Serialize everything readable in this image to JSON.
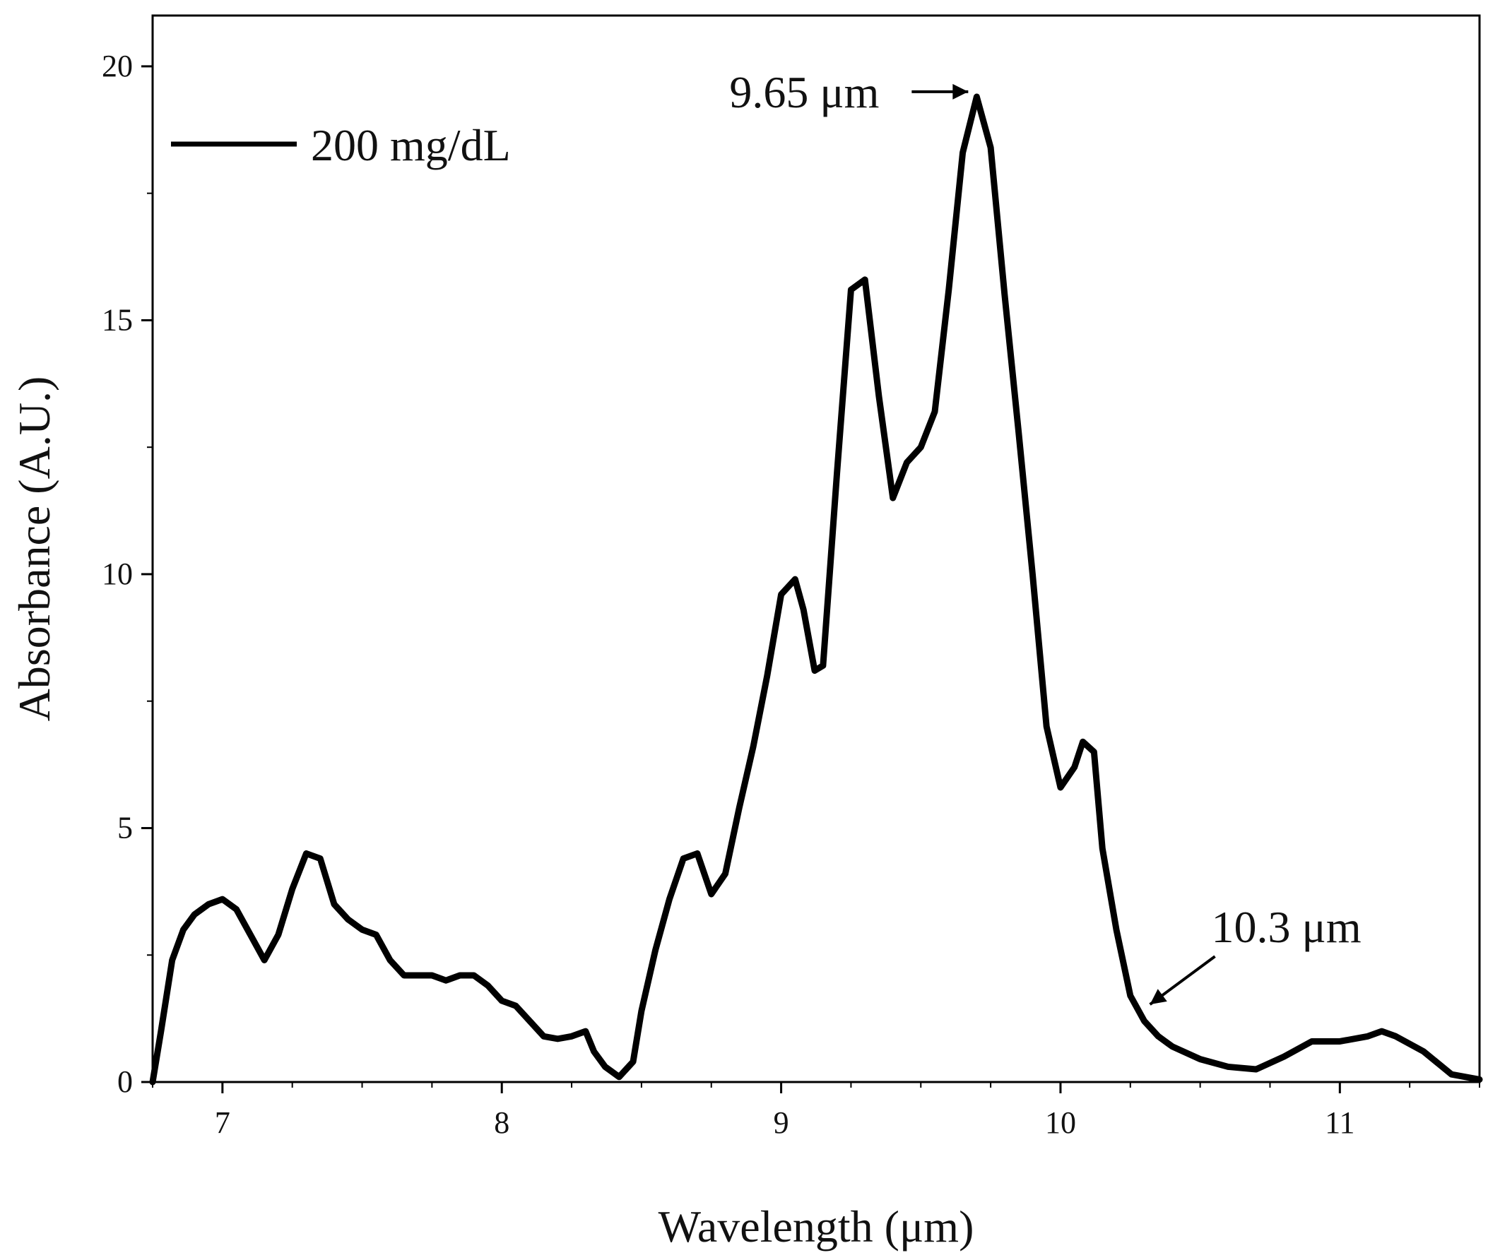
{
  "chart_data": {
    "type": "line",
    "xlabel": "Wavelength (μm)",
    "ylabel": "Absorbance (A.U.)",
    "xlim": [
      6.75,
      11.5
    ],
    "ylim": [
      0,
      21
    ],
    "x_ticks": [
      7,
      8,
      9,
      10,
      11
    ],
    "x_tick_labels": [
      "7",
      "8",
      "9",
      "10",
      "11"
    ],
    "y_ticks": [
      0,
      5,
      10,
      15,
      20
    ],
    "y_tick_labels": [
      "0",
      "5",
      "10",
      "15",
      "20"
    ],
    "grid": false,
    "legend": {
      "position": "top-left",
      "entries": [
        "200 mg/dL"
      ]
    },
    "series": [
      {
        "name": "200 mg/dL",
        "color": "#000000",
        "x": [
          6.75,
          6.78,
          6.82,
          6.86,
          6.9,
          6.95,
          7.0,
          7.05,
          7.1,
          7.15,
          7.2,
          7.25,
          7.3,
          7.35,
          7.4,
          7.45,
          7.5,
          7.55,
          7.6,
          7.65,
          7.7,
          7.75,
          7.8,
          7.85,
          7.9,
          7.95,
          8.0,
          8.05,
          8.1,
          8.15,
          8.2,
          8.25,
          8.3,
          8.33,
          8.37,
          8.42,
          8.47,
          8.5,
          8.55,
          8.6,
          8.65,
          8.7,
          8.75,
          8.8,
          8.85,
          8.9,
          8.95,
          9.0,
          9.05,
          9.08,
          9.12,
          9.15,
          9.2,
          9.25,
          9.3,
          9.35,
          9.4,
          9.45,
          9.5,
          9.55,
          9.6,
          9.65,
          9.7,
          9.75,
          9.8,
          9.85,
          9.9,
          9.95,
          10.0,
          10.05,
          10.08,
          10.12,
          10.15,
          10.2,
          10.25,
          10.3,
          10.35,
          10.4,
          10.5,
          10.6,
          10.7,
          10.8,
          10.9,
          11.0,
          11.1,
          11.15,
          11.2,
          11.3,
          11.4,
          11.5
        ],
        "values": [
          0.0,
          1.0,
          2.4,
          3.0,
          3.3,
          3.5,
          3.6,
          3.4,
          2.9,
          2.4,
          2.9,
          3.8,
          4.5,
          4.4,
          3.5,
          3.2,
          3.0,
          2.9,
          2.4,
          2.1,
          2.1,
          2.1,
          2.0,
          2.1,
          2.1,
          1.9,
          1.6,
          1.5,
          1.2,
          0.9,
          0.85,
          0.9,
          1.0,
          0.6,
          0.3,
          0.1,
          0.4,
          1.4,
          2.6,
          3.6,
          4.4,
          4.5,
          3.7,
          4.1,
          5.4,
          6.6,
          8.0,
          9.6,
          9.9,
          9.3,
          8.1,
          8.2,
          12.0,
          15.6,
          15.8,
          13.5,
          11.5,
          12.2,
          12.5,
          13.2,
          15.6,
          18.3,
          19.4,
          18.4,
          15.5,
          12.8,
          10.0,
          7.0,
          5.8,
          6.2,
          6.7,
          6.5,
          4.6,
          3.0,
          1.7,
          1.2,
          0.9,
          0.7,
          0.45,
          0.3,
          0.25,
          0.5,
          0.8,
          0.8,
          0.9,
          1.0,
          0.9,
          0.6,
          0.15,
          0.05
        ]
      }
    ],
    "annotations": [
      {
        "label": "9.65 μm",
        "x": 9.7,
        "y": 19.5,
        "position": "left"
      },
      {
        "label": "10.3 μm",
        "x": 10.3,
        "y": 1.5,
        "position": "upper-right"
      }
    ]
  }
}
